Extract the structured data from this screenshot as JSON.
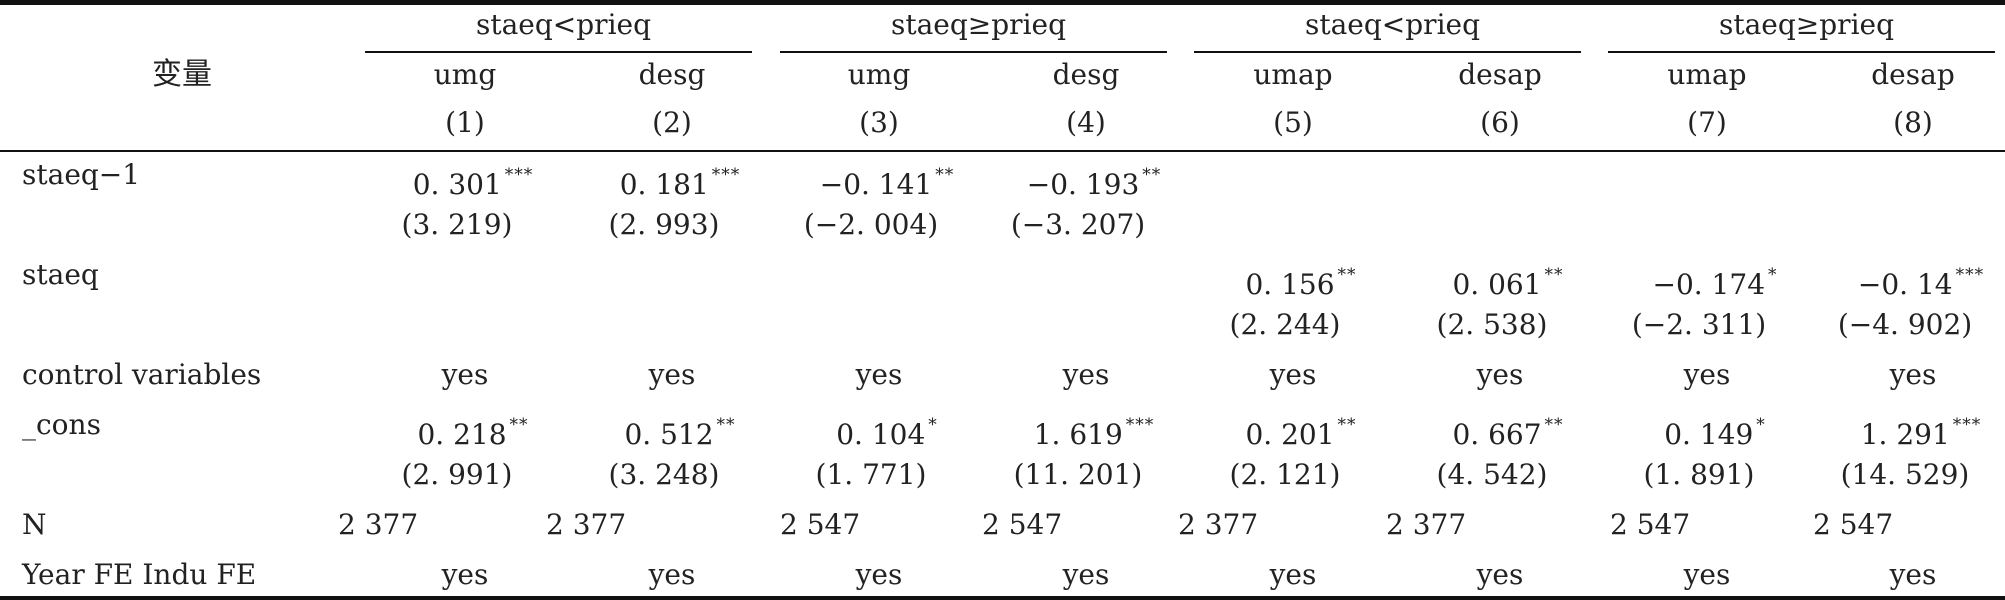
{
  "table": {
    "stub_header": "变量",
    "groups": [
      "staeq<prieq",
      "staeq≥prieq",
      "staeq<prieq",
      "staeq≥prieq"
    ],
    "columns": [
      {
        "var": "umg",
        "num": "(1)"
      },
      {
        "var": "desg",
        "num": "(2)"
      },
      {
        "var": "umg",
        "num": "(3)"
      },
      {
        "var": "desg",
        "num": "(4)"
      },
      {
        "var": "umap",
        "num": "(5)"
      },
      {
        "var": "desap",
        "num": "(6)"
      },
      {
        "var": "umap",
        "num": "(7)"
      },
      {
        "var": "desap",
        "num": "(8)"
      }
    ],
    "rows": [
      {
        "label": "staeq−1",
        "coef": [
          {
            "v": "0. 301",
            "s": "***"
          },
          {
            "v": "0. 181",
            "s": "***"
          },
          {
            "v": "−0. 141",
            "s": "**"
          },
          {
            "v": "−0. 193",
            "s": "**"
          },
          null,
          null,
          null,
          null
        ],
        "t": [
          "(3. 219)",
          "(2. 993)",
          "(−2. 004)",
          "(−3. 207)",
          "",
          "",
          "",
          ""
        ]
      },
      {
        "label": "staeq",
        "coef": [
          null,
          null,
          null,
          null,
          {
            "v": "0. 156",
            "s": "**"
          },
          {
            "v": "0. 061",
            "s": "**"
          },
          {
            "v": "−0. 174",
            "s": "*"
          },
          {
            "v": "−0. 14",
            "s": "***"
          }
        ],
        "t": [
          "",
          "",
          "",
          "",
          "(2. 244)",
          "(2. 538)",
          "(−2. 311)",
          "(−4. 902)"
        ]
      },
      {
        "label": "control variables",
        "plain": [
          "yes",
          "yes",
          "yes",
          "yes",
          "yes",
          "yes",
          "yes",
          "yes"
        ]
      },
      {
        "label": "_cons",
        "coef": [
          {
            "v": "0. 218",
            "s": "**"
          },
          {
            "v": "0. 512",
            "s": "**"
          },
          {
            "v": "0. 104",
            "s": "*"
          },
          {
            "v": "1. 619",
            "s": "***"
          },
          {
            "v": "0. 201",
            "s": "**"
          },
          {
            "v": "0. 667",
            "s": "**"
          },
          {
            "v": "0. 149",
            "s": "*"
          },
          {
            "v": "1. 291",
            "s": "***"
          }
        ],
        "t": [
          "(2. 991)",
          "(3. 248)",
          "(1. 771)",
          "(11. 201)",
          "(2. 121)",
          "(4. 542)",
          "(1. 891)",
          "(14. 529)"
        ]
      },
      {
        "label": "N",
        "n": [
          "2 377",
          "2 377",
          "2 547",
          "2 547",
          "2 377",
          "2 377",
          "2 547",
          "2 547"
        ]
      },
      {
        "label": "Year FE Indu FE",
        "plain": [
          "yes",
          "yes",
          "yes",
          "yes",
          "yes",
          "yes",
          "yes",
          "yes"
        ]
      }
    ]
  }
}
